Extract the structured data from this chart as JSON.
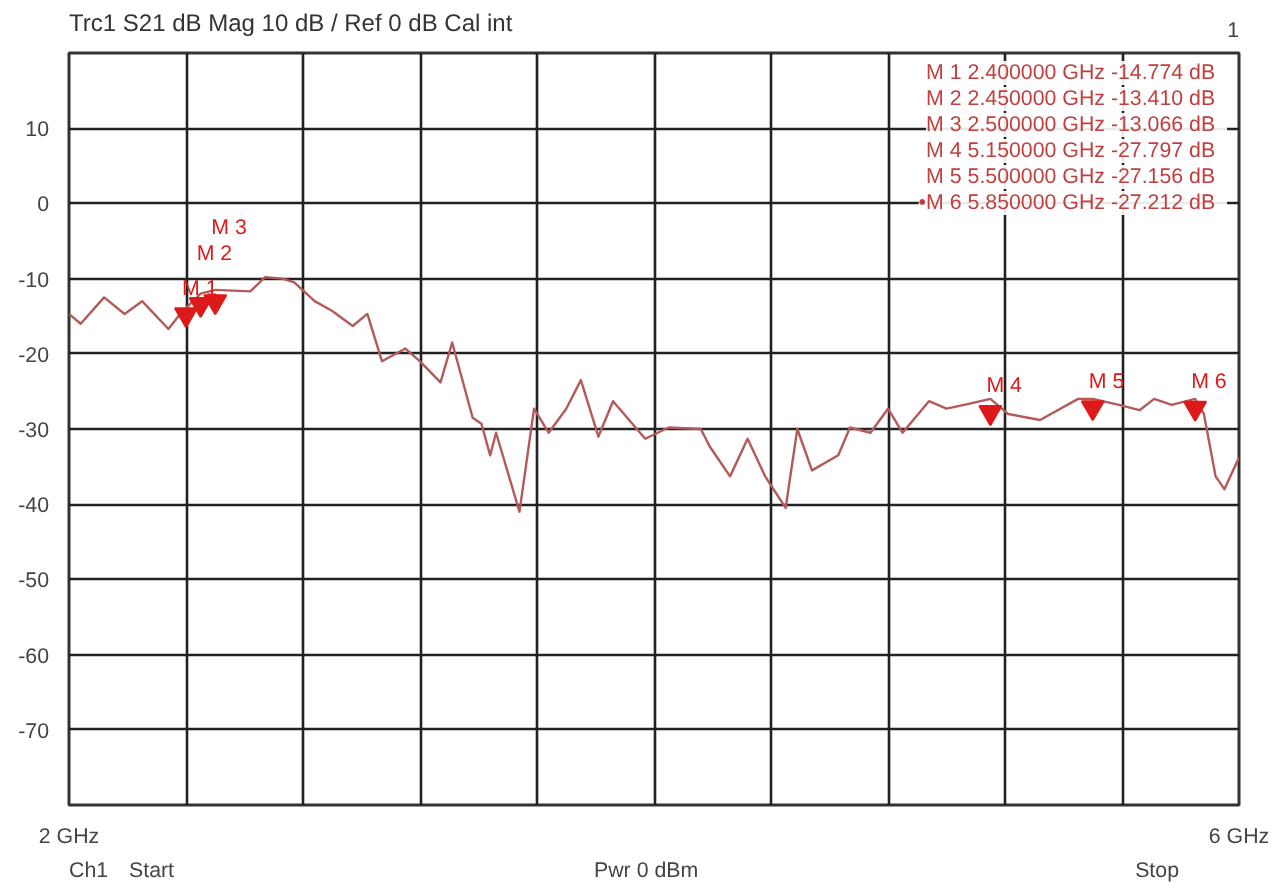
{
  "chart_data": {
    "type": "line",
    "title": "Trc1  S21  dB Mag  10 dB /  Ref 0 dB    Cal int",
    "x": [
      2.0,
      2.04,
      2.12,
      2.19,
      2.25,
      2.34,
      2.38,
      2.45,
      2.5,
      2.62,
      2.67,
      2.73,
      2.77,
      2.84,
      2.9,
      2.97,
      3.02,
      3.07,
      3.15,
      3.2,
      3.27,
      3.31,
      3.38,
      3.41,
      3.44,
      3.46,
      3.54,
      3.59,
      3.64,
      3.7,
      3.75,
      3.81,
      3.86,
      3.97,
      4.05,
      4.16,
      4.19,
      4.26,
      4.32,
      4.38,
      4.45,
      4.49,
      4.54,
      4.63,
      4.67,
      4.74,
      4.8,
      4.85,
      4.94,
      5.0,
      5.06,
      5.15,
      5.21,
      5.32,
      5.45,
      5.5,
      5.59,
      5.66,
      5.71,
      5.77,
      5.85,
      5.88,
      5.92,
      5.95,
      6.0
    ],
    "series": [
      {
        "color": "#b35a5a",
        "values": [
          -14.7,
          -16,
          -12.5,
          -14.7,
          -13,
          -16.7,
          -14.7,
          -12,
          -11.5,
          -11.7,
          -9.8,
          -10,
          -10.5,
          -13,
          -14.3,
          -16.3,
          -14.7,
          -21,
          -19.3,
          -21,
          -23.8,
          -18.5,
          -28.5,
          -29.3,
          -33.5,
          -30.5,
          -41,
          -27.3,
          -30.5,
          -27.3,
          -23.5,
          -31,
          -26.3,
          -31.3,
          -29.8,
          -30,
          -32.3,
          -36.3,
          -31.3,
          -36.3,
          -40.5,
          -30,
          -35.5,
          -33.5,
          -29.8,
          -30.5,
          -27.3,
          -30.5,
          -26.3,
          -27.3,
          -26.8,
          -26,
          -28,
          -28.8,
          -26,
          -26,
          -26.8,
          -27.5,
          -26,
          -26.8,
          -26,
          -28,
          -36.3,
          -38,
          -33.8
        ]
      },
      {
        "type": "scatter",
        "marker": "triangle",
        "color": "#dd1a1a",
        "x": [
          2.4,
          2.45,
          2.5,
          5.15,
          5.5,
          5.85
        ],
        "values": [
          -14.774,
          -13.41,
          -13.066,
          -27.797,
          -27.156,
          -27.212
        ],
        "value_labels": [
          "M 1",
          "M 2",
          "M 3",
          "M 4",
          "M 5",
          "M 6"
        ]
      }
    ],
    "xlim": [
      2.0,
      6.0
    ],
    "xticks": [
      {
        "value": 2.0,
        "label": "2 GHz"
      },
      {
        "value": 2.4,
        "label": null
      },
      {
        "value": 2.8,
        "label": null
      },
      {
        "value": 3.2,
        "label": null
      },
      {
        "value": 3.6,
        "label": null
      },
      {
        "value": 4.0,
        "label": null
      },
      {
        "value": 4.4,
        "label": null
      },
      {
        "value": 4.8,
        "label": null
      },
      {
        "value": 5.2,
        "label": null
      },
      {
        "value": 5.6,
        "label": null
      },
      {
        "value": 6.0,
        "label": "6 GHz"
      }
    ],
    "ylim": [
      -80,
      20
    ],
    "yticks": [
      10,
      0,
      -10,
      -20,
      -30,
      -40,
      -50,
      -60,
      -70
    ],
    "grid": true,
    "annotations": [
      "1",
      "Ch1",
      "Start",
      "Pwr  0 dBm",
      "Stop",
      "M 1  2.400000 GHz  -14.774 dB",
      "M 2  2.450000 GHz  -13.410 dB",
      "M 3  2.500000 GHz  -13.066 dB",
      "M 4  5.150000 GHz  -27.797 dB",
      "M 5  5.500000 GHz  -27.156 dB",
      "•M 6  5.850000 GHz  -27.212 dB"
    ]
  }
}
